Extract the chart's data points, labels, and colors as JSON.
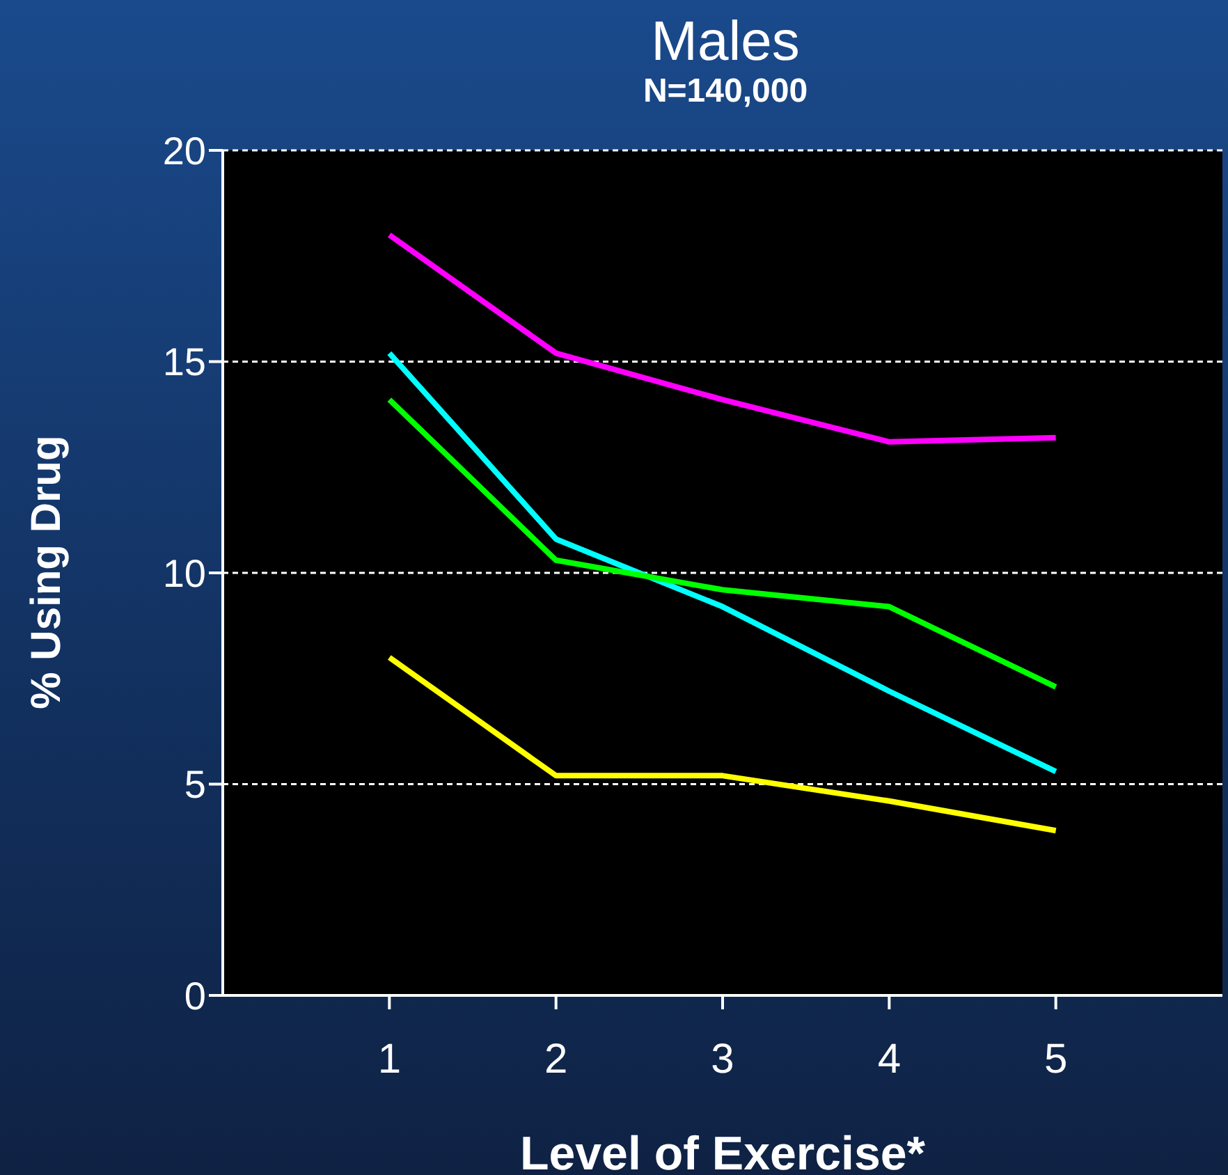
{
  "chart_data": {
    "type": "line",
    "title": "Males",
    "subtitle": "N=140,000",
    "xlabel": "Level of Exercise*",
    "ylabel": "% Using Drug",
    "x": [
      1,
      2,
      3,
      4,
      5
    ],
    "series": [
      {
        "color": "#ff00ff",
        "values": [
          18.0,
          15.2,
          14.1,
          13.1,
          13.2
        ]
      },
      {
        "color": "#00ffff",
        "values": [
          15.2,
          10.8,
          9.2,
          7.2,
          5.3
        ]
      },
      {
        "color": "#00ff00",
        "values": [
          14.1,
          10.3,
          9.6,
          9.2,
          7.3
        ]
      },
      {
        "color": "#ffff00",
        "values": [
          8.0,
          5.2,
          5.2,
          4.6,
          3.9
        ]
      }
    ],
    "xlim": [
      0,
      6
    ],
    "xticks": [
      1,
      2,
      3,
      4,
      5
    ],
    "ylim": [
      0,
      20
    ],
    "yticks": [
      0,
      5,
      10,
      15,
      20
    ],
    "grid": "y",
    "legend": false,
    "marker": "none",
    "line_style": "solid"
  }
}
